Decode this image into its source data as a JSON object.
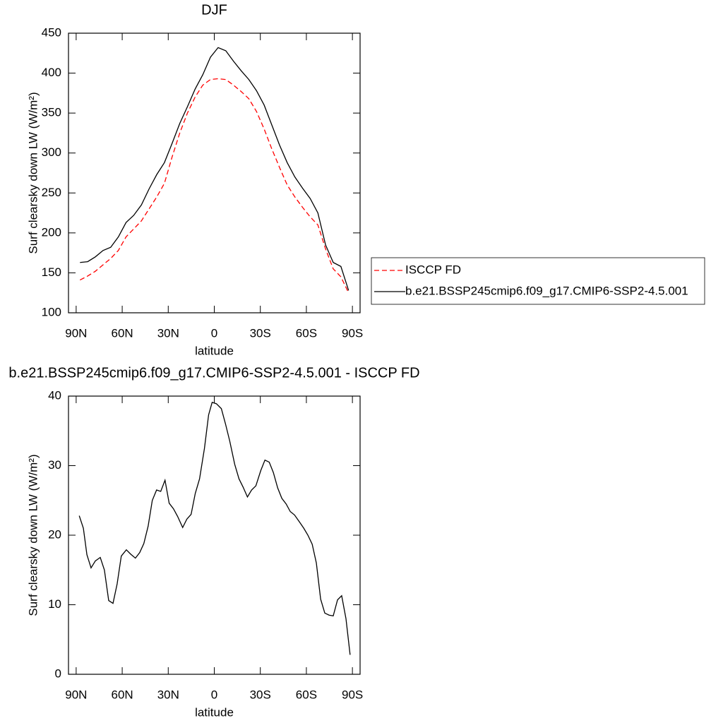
{
  "chart_data": [
    {
      "type": "line",
      "title": "DJF",
      "xlabel": "latitude",
      "ylabel": "Surf clearsky down LW (W/m²)",
      "x": [
        87.5,
        82.5,
        77.5,
        72.5,
        67.5,
        62.5,
        57.5,
        52.5,
        47.5,
        42.5,
        37.5,
        32.5,
        27.5,
        22.5,
        17.5,
        12.5,
        7.5,
        2.5,
        -2.5,
        -7.5,
        -12.5,
        -17.5,
        -22.5,
        -27.5,
        -32.5,
        -37.5,
        -42.5,
        -47.5,
        -52.5,
        -57.5,
        -62.5,
        -67.5,
        -72.5,
        -77.5,
        -82.5,
        -87.5
      ],
      "series": [
        {
          "name": "ISCCP FD",
          "color": "#ff0000",
          "style": "dashed",
          "values": [
            141,
            146,
            152,
            160,
            168,
            178,
            195,
            205,
            215,
            230,
            245,
            262,
            295,
            325,
            350,
            370,
            385,
            392,
            393,
            392,
            385,
            377,
            368,
            352,
            330,
            305,
            282,
            260,
            245,
            232,
            220,
            210,
            180,
            155,
            145,
            125
          ]
        },
        {
          "name": "b.e21.BSSP245cmip6.f09_g17.CMIP6-SSP2-4.5.001",
          "color": "#000000",
          "style": "solid",
          "values": [
            163,
            164,
            170,
            178,
            182,
            195,
            213,
            222,
            235,
            255,
            273,
            288,
            312,
            337,
            358,
            380,
            398,
            420,
            432,
            428,
            415,
            403,
            392,
            378,
            360,
            335,
            310,
            288,
            270,
            256,
            243,
            225,
            185,
            163,
            158,
            128
          ]
        }
      ],
      "xlim": [
        95,
        -95
      ],
      "xticks": [
        {
          "value": 90,
          "label": "90N"
        },
        {
          "value": 60,
          "label": "60N"
        },
        {
          "value": 30,
          "label": "30N"
        },
        0,
        {
          "value": -30,
          "label": "30S"
        },
        {
          "value": -60,
          "label": "60S"
        },
        {
          "value": -90,
          "label": "90S"
        }
      ],
      "ylim": [
        100,
        450
      ],
      "yticks": [
        100,
        150,
        200,
        250,
        300,
        350,
        400,
        450
      ],
      "legend": "right"
    },
    {
      "type": "line",
      "title": "b.e21.BSSP245cmip6.f09_g17.CMIP6-SSP2-4.5.001 - ISCCP FD",
      "xlabel": "latitude",
      "ylabel": "Surf clearsky down LW (W/m²)",
      "x": [
        88,
        85.3,
        83,
        80.3,
        77.5,
        74.3,
        71.6,
        68.8,
        66,
        63.3,
        60.6,
        57.3,
        54.6,
        51.4,
        48.6,
        45.9,
        43.1,
        40.4,
        37.6,
        34.9,
        32.1,
        29.4,
        26.6,
        23.9,
        20.6,
        17.9,
        15.1,
        12.4,
        9.6,
        6.4,
        3.7,
        1.4,
        -1.4,
        -4.6,
        -7.3,
        -10.1,
        -13.3,
        -16.1,
        -18.8,
        -21.6,
        -24.3,
        -27.1,
        -30.3,
        -33,
        -35.8,
        -38.5,
        -41.3,
        -44,
        -46.8,
        -49.5,
        -52.3,
        -55.5,
        -58.3,
        -61,
        -63.8,
        -66.5,
        -69.3,
        -72,
        -74.8,
        -77.5,
        -80.3,
        -83,
        -85.8,
        -88.5
      ],
      "series": [
        {
          "color": "#000000",
          "style": "solid",
          "values": [
            22.8,
            21,
            17.2,
            15.3,
            16.3,
            16.8,
            15,
            10.6,
            10.2,
            13,
            17,
            17.9,
            17.3,
            16.7,
            17.5,
            18.8,
            21.3,
            25,
            26.5,
            26.3,
            27.9,
            24.6,
            23.8,
            22.7,
            21.1,
            22.3,
            23,
            26,
            28.1,
            32.5,
            37.3,
            39.1,
            38.9,
            38.2,
            36,
            33.5,
            30.2,
            28.1,
            26.9,
            25.5,
            26.5,
            27.1,
            29.3,
            30.8,
            30.5,
            29,
            26.8,
            25.3,
            24.5,
            23.4,
            22.9,
            21.9,
            21,
            20,
            18.7,
            16,
            10.8,
            8.8,
            8.5,
            8.4,
            10.7,
            11.3,
            8,
            2.8
          ]
        }
      ],
      "xlim": [
        95,
        -95
      ],
      "xticks": [
        {
          "value": 90,
          "label": "90N"
        },
        {
          "value": 60,
          "label": "60N"
        },
        {
          "value": 30,
          "label": "30N"
        },
        0,
        {
          "value": -30,
          "label": "30S"
        },
        {
          "value": -60,
          "label": "60S"
        },
        {
          "value": -90,
          "label": "90S"
        }
      ],
      "ylim": [
        0,
        40
      ],
      "yticks": [
        0,
        10,
        20,
        30,
        40
      ]
    }
  ]
}
